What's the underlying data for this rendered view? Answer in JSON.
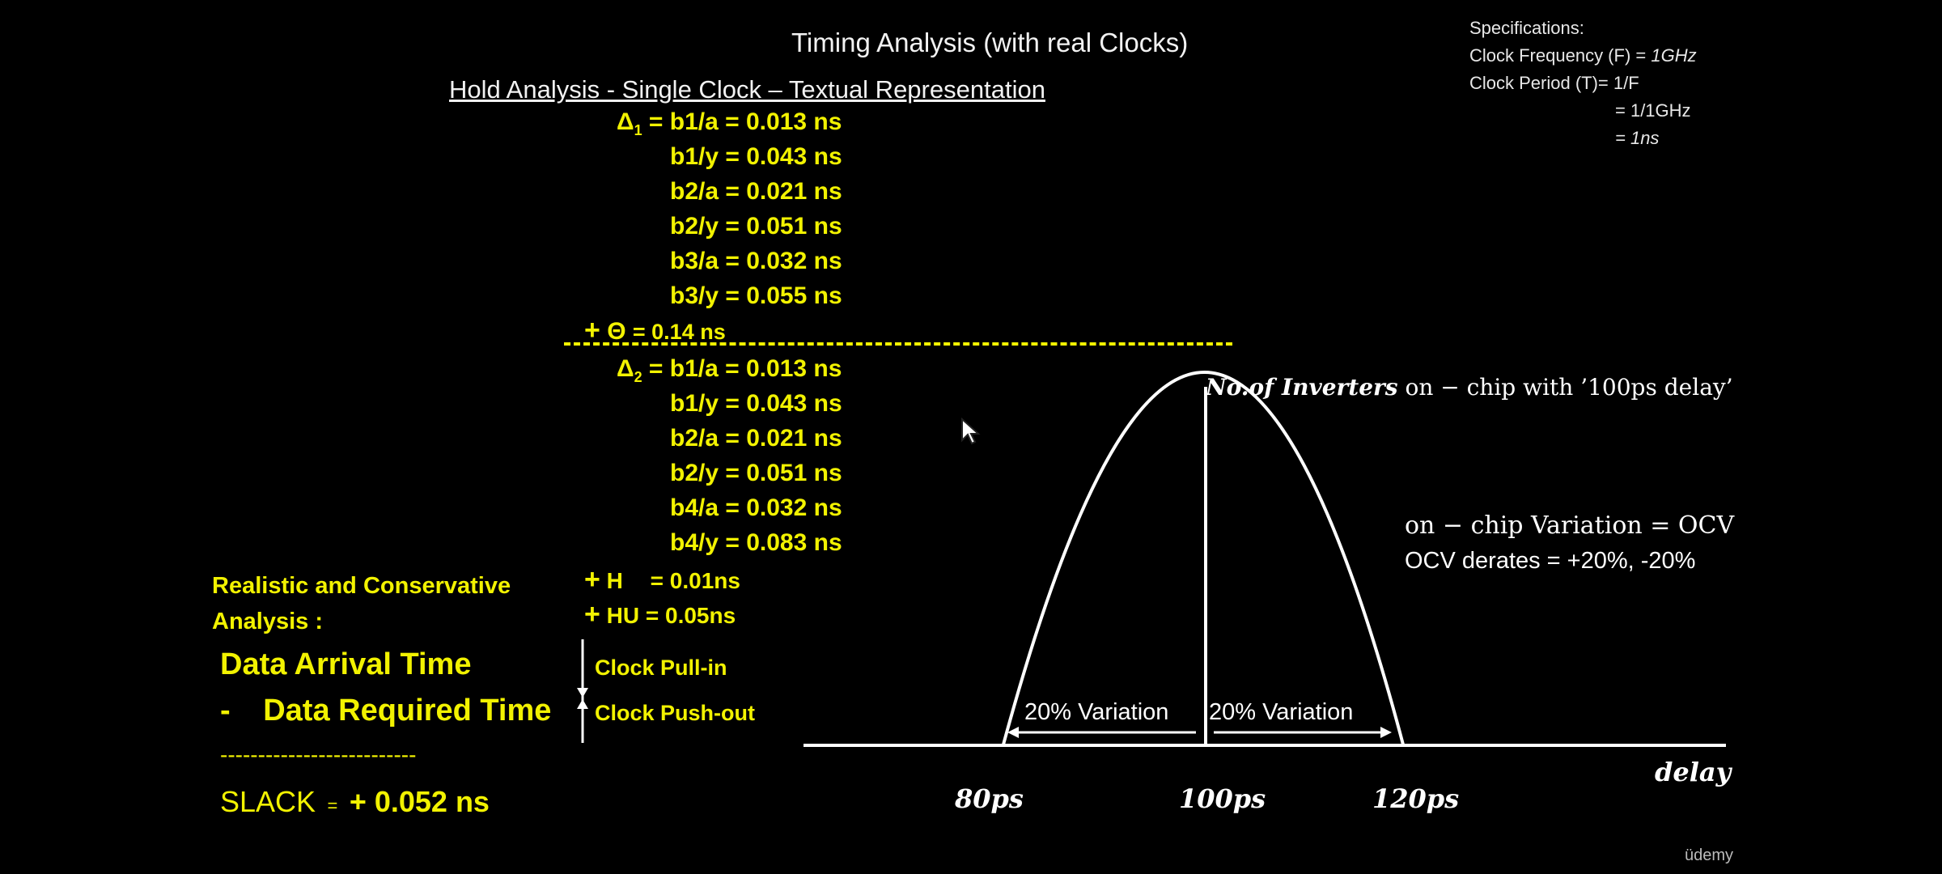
{
  "title": "Timing Analysis (with real Clocks)",
  "subtitle": "Hold Analysis - Single Clock – Textual Representation",
  "specs": {
    "heading": "Specifications:",
    "freq_label": "Clock Frequency (F) = ",
    "freq_value": "1GHz",
    "period_label": "Clock Period (T)= 1/F",
    "period_step": "= 1/1GHz",
    "period_value": "= 1ns"
  },
  "delta1": {
    "symbol": "Δ",
    "sub": "1",
    "lines": [
      "= b1/a = 0.013 ns",
      "b1/y = 0.043 ns",
      "b2/a = 0.021 ns",
      "b2/y = 0.051 ns",
      "b3/a = 0.032 ns",
      "b3/y = 0.055 ns"
    ]
  },
  "theta": {
    "plus": "+",
    "label": "Θ",
    "value": "= 0.14 ns"
  },
  "delta2": {
    "symbol": "Δ",
    "sub": "2",
    "lines": [
      "= b1/a = 0.013 ns",
      "b1/y = 0.043 ns",
      "b2/a = 0.021 ns",
      "b2/y = 0.051 ns",
      "b4/a = 0.032 ns",
      "b4/y = 0.083 ns"
    ]
  },
  "hold": {
    "plus": "+",
    "label": "H",
    "value": "= 0.01ns"
  },
  "hold_uncertainty": {
    "plus": "+",
    "label": "HU",
    "value": "= 0.05ns"
  },
  "analysis": {
    "line1": "Realistic and Conservative",
    "line2": "Analysis :",
    "data_arrival": "Data Arrival Time",
    "minus": "-",
    "data_required": "Data Required Time",
    "pull_in": "Clock Pull-in",
    "push_out": "Clock Push-out",
    "separator": "--------------------------",
    "slack_label": "SLACK",
    "slack_eq": "=",
    "slack_value": "+ 0.052 ns"
  },
  "chart": {
    "curve_label_italic": "No.of Inverters",
    "curve_label_rest": " on − chip with ’100ps delay’",
    "ocv_line": "on − chip Variation = OCV",
    "derates_line": "OCV derates = +20%, -20%",
    "left_variation": "20% Variation",
    "right_variation": "20% Variation",
    "x_axis_label": "delay",
    "ticks": [
      "80ps",
      "100ps",
      "120ps"
    ]
  },
  "watermark": "üdemy",
  "colors": {
    "accent": "#f2f200",
    "background": "#000000"
  }
}
